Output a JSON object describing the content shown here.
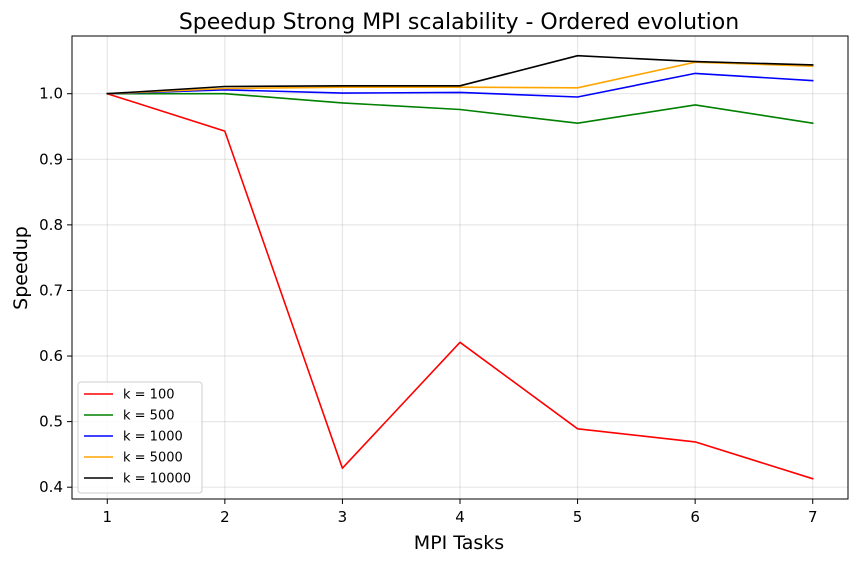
{
  "chart_data": {
    "type": "line",
    "title": "Speedup Strong MPI scalability - Ordered evolution",
    "xlabel": "MPI Tasks",
    "ylabel": "Speedup",
    "x": [
      1,
      2,
      3,
      4,
      5,
      6,
      7
    ],
    "xlim": [
      0.7,
      7.3
    ],
    "ylim": [
      0.382,
      1.088
    ],
    "xticks": [
      1,
      2,
      3,
      4,
      5,
      6,
      7
    ],
    "yticks": [
      0.4,
      0.5,
      0.6,
      0.7,
      0.8,
      0.9,
      1.0
    ],
    "ytick_labels": [
      "0.4",
      "0.5",
      "0.6",
      "0.7",
      "0.8",
      "0.9",
      "1.0"
    ],
    "grid": true,
    "legend_position": "lower-left",
    "series": [
      {
        "name": "k = 100",
        "color": "#ff0000",
        "values": [
          1.0,
          0.943,
          0.429,
          0.621,
          0.489,
          0.469,
          0.413
        ]
      },
      {
        "name": "k = 500",
        "color": "#008000",
        "values": [
          1.0,
          1.0,
          0.986,
          0.976,
          0.955,
          0.983,
          0.955
        ]
      },
      {
        "name": "k = 1000",
        "color": "#0000ff",
        "values": [
          1.0,
          1.006,
          1.001,
          1.002,
          0.995,
          1.031,
          1.02
        ]
      },
      {
        "name": "k = 5000",
        "color": "#ffa500",
        "values": [
          1.0,
          1.008,
          1.01,
          1.01,
          1.009,
          1.048,
          1.042
        ]
      },
      {
        "name": "k = 10000",
        "color": "#000000",
        "values": [
          1.0,
          1.011,
          1.012,
          1.012,
          1.058,
          1.049,
          1.044
        ]
      }
    ]
  }
}
